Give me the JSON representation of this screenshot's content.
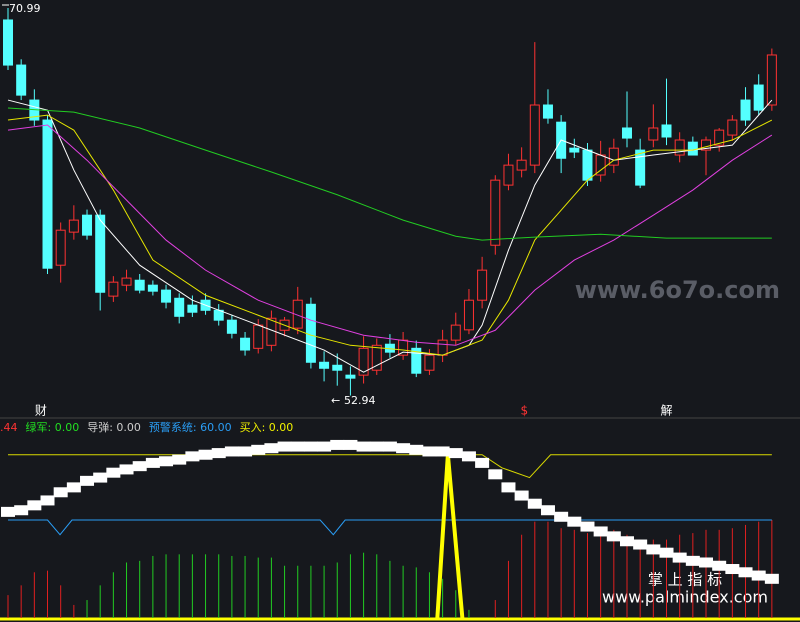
{
  "chart_data": [
    {
      "type": "candlestick",
      "ylim": [
        52.5,
        71.36
      ],
      "annotations": [
        "70.99",
        "52.94"
      ],
      "markers": [
        {
          "text": "财",
          "color": "#ffffff",
          "index": 2.5
        },
        {
          "text": "$",
          "color": "#ff3333",
          "index": 39.2
        },
        {
          "text": "解",
          "color": "#ffffff",
          "index": 50
        }
      ],
      "watermark": "www.6o7o.com",
      "up_color": "#ff3232",
      "down_color": "#54ffff",
      "open": [
        70.43,
        68.33,
        66.7,
        65.77,
        59.01,
        60.55,
        61.34,
        61.34,
        57.57,
        58.08,
        58.31,
        58.08,
        57.85,
        57.47,
        57.15,
        57.38,
        56.91,
        56.45,
        55.61,
        55.14,
        55.28,
        55.98,
        56.08,
        57.19,
        54.49,
        54.35,
        53.89,
        53.89,
        54.12,
        55.33,
        54.82,
        55.14,
        54.12,
        54.82,
        55.52,
        56.0,
        57.38,
        59.94,
        62.74,
        63.44,
        63.67,
        66.47,
        65.67,
        64.46,
        64.37,
        63.21,
        63.67,
        65.4,
        64.37,
        64.84,
        65.54,
        64.14,
        64.74,
        64.37,
        64.6,
        65.07,
        66.7,
        67.4,
        66.47
      ],
      "high": [
        70.99,
        68.6,
        67.2,
        66.0,
        61.0,
        61.8,
        61.6,
        61.6,
        58.5,
        58.8,
        58.6,
        58.3,
        58.1,
        57.7,
        57.6,
        57.7,
        57.2,
        56.7,
        55.9,
        56.5,
        56.9,
        56.6,
        58.0,
        57.5,
        55.0,
        54.9,
        54.3,
        55.7,
        55.6,
        55.8,
        55.9,
        55.5,
        55.1,
        56.0,
        56.8,
        57.9,
        59.4,
        63.2,
        64.2,
        64.5,
        69.4,
        67.2,
        66.0,
        64.9,
        64.7,
        64.8,
        64.9,
        67.1,
        64.9,
        66.5,
        67.7,
        65.2,
        65.0,
        65.0,
        65.4,
        66.0,
        67.3,
        67.9,
        69.1
      ],
      "low": [
        68.1,
        66.7,
        65.5,
        58.6,
        58.2,
        60.2,
        60.2,
        56.9,
        57.3,
        57.8,
        57.7,
        57.6,
        57.0,
        56.3,
        56.6,
        56.7,
        56.2,
        55.6,
        54.8,
        54.9,
        55.0,
        55.7,
        55.8,
        54.2,
        53.6,
        53.4,
        52.94,
        53.5,
        53.9,
        54.7,
        54.6,
        53.8,
        53.9,
        54.5,
        55.3,
        55.8,
        57.0,
        59.5,
        62.5,
        63.1,
        63.3,
        65.6,
        63.3,
        64.0,
        62.7,
        62.9,
        63.3,
        64.5,
        62.6,
        64.5,
        64.6,
        63.8,
        64.2,
        63.2,
        64.3,
        64.8,
        65.5,
        66.0,
        66.2
      ],
      "close": [
        68.33,
        66.93,
        65.77,
        58.87,
        60.64,
        61.11,
        60.41,
        57.75,
        58.22,
        58.41,
        57.85,
        57.8,
        57.29,
        56.63,
        56.82,
        56.91,
        56.45,
        55.84,
        55.06,
        56.22,
        56.54,
        56.45,
        57.38,
        54.49,
        54.21,
        54.12,
        53.75,
        55.14,
        55.28,
        54.96,
        55.52,
        53.98,
        54.82,
        55.52,
        56.22,
        57.38,
        58.78,
        62.97,
        63.67,
        63.9,
        66.47,
        65.86,
        63.99,
        64.28,
        62.97,
        64.14,
        64.46,
        64.93,
        62.74,
        65.4,
        64.98,
        64.84,
        64.14,
        64.84,
        65.3,
        65.77,
        65.77,
        66.23,
        68.8
      ],
      "lines": [
        {
          "color": "#ffffff",
          "x": [
            0,
            3,
            5,
            7,
            10,
            14,
            19,
            24,
            27,
            30,
            33,
            35,
            36,
            38,
            40,
            42,
            44,
            46,
            49,
            52,
            55,
            58
          ],
          "values": [
            66.7,
            66.23,
            63.44,
            61.11,
            59.01,
            57.38,
            56.22,
            55.06,
            54.03,
            54.96,
            54.82,
            55.28,
            56.22,
            59.71,
            62.74,
            64.84,
            64.37,
            63.9,
            64.14,
            64.37,
            64.6,
            66.7
          ]
        },
        {
          "color": "#e6e600",
          "x": [
            0,
            3,
            5,
            8,
            11,
            15,
            19,
            23,
            26,
            30,
            33,
            36,
            38,
            40,
            42,
            44,
            46,
            49,
            52,
            55,
            58
          ],
          "values": [
            65.77,
            66.0,
            65.3,
            62.51,
            59.25,
            57.61,
            56.68,
            55.75,
            55.28,
            55.06,
            54.82,
            55.52,
            57.38,
            60.18,
            61.57,
            62.97,
            63.9,
            64.37,
            64.37,
            64.84,
            65.77
          ]
        },
        {
          "color": "#e040e0",
          "x": [
            0,
            3,
            6,
            9,
            12,
            15,
            19,
            23,
            27,
            31,
            34,
            37,
            40,
            43,
            46,
            49,
            52,
            55,
            58
          ],
          "values": [
            65.3,
            65.54,
            63.9,
            62.04,
            60.18,
            58.78,
            57.38,
            56.45,
            55.75,
            55.42,
            55.28,
            55.98,
            57.85,
            59.25,
            60.18,
            61.34,
            62.51,
            63.9,
            65.07
          ]
        },
        {
          "color": "#22cc22",
          "x": [
            0,
            5,
            10,
            15,
            20,
            25,
            30,
            34,
            36,
            40,
            45,
            50,
            58
          ],
          "values": [
            66.33,
            66.14,
            65.4,
            64.37,
            63.35,
            62.29,
            61.11,
            60.36,
            60.18,
            60.32,
            60.45,
            60.27,
            60.27
          ]
        }
      ]
    },
    {
      "type": "indicator",
      "ylim": [
        0,
        110
      ],
      "legend": [
        {
          "text": ".44",
          "color": "#ff3333"
        },
        {
          "text": "绿军: 0.00",
          "color": "#22dd22"
        },
        {
          "text": "导弹: 0.00",
          "color": "#cccccc"
        },
        {
          "text": "预警系统: 60.00",
          "color": "#2a9df4"
        },
        {
          "text": "买入: 0.00",
          "color": "#f0f000"
        }
      ],
      "footer": [
        "掌 上 指 标",
        "www.palmindex.com"
      ],
      "hist_red": [
        14,
        20,
        28,
        29,
        20,
        8,
        null,
        null,
        null,
        null,
        null,
        null,
        null,
        null,
        null,
        null,
        null,
        null,
        null,
        null,
        null,
        null,
        null,
        null,
        null,
        null,
        null,
        null,
        null,
        null,
        null,
        null,
        null,
        null,
        null,
        null,
        0,
        11,
        35,
        51,
        59,
        59,
        55,
        54,
        52,
        54,
        54,
        51,
        48,
        48,
        48,
        51,
        52,
        54,
        54,
        55,
        57,
        59,
        60
      ],
      "hist_green": [
        null,
        null,
        null,
        null,
        null,
        null,
        11,
        20,
        28,
        34,
        35,
        38,
        39,
        39,
        39,
        39,
        39,
        38,
        38,
        37,
        37,
        32,
        32,
        32,
        32,
        34,
        39,
        40,
        39,
        35,
        32,
        31,
        28,
        24,
        17,
        5,
        null,
        null,
        null,
        null,
        null,
        null,
        null,
        null,
        null,
        null,
        null,
        null,
        null,
        null,
        null,
        null,
        null,
        null,
        null,
        null,
        null,
        null,
        null
      ],
      "blocks": [
        65,
        66,
        69,
        72,
        77,
        80,
        84,
        86,
        89,
        91,
        93,
        95,
        96,
        97,
        99,
        100,
        101,
        102,
        102,
        103,
        104,
        105,
        105,
        105,
        105,
        106,
        106,
        105,
        105,
        105,
        104,
        103,
        102,
        102,
        101,
        99,
        95,
        88,
        80,
        75,
        70,
        66,
        62,
        59,
        56,
        53,
        50,
        47,
        45,
        42,
        40,
        37,
        35,
        34,
        32,
        30,
        28,
        26,
        24
      ],
      "lines": [
        {
          "color": "#d8d800",
          "width": 1,
          "x": [
            0,
            36,
            37.5,
            39.6,
            41.2,
            58
          ],
          "values": [
            100,
            100,
            92,
            86,
            100,
            100
          ]
        },
        {
          "color": "#2a9df4",
          "width": 1,
          "x": [
            0,
            3.0,
            3.95,
            4.86,
            23.7,
            24.7,
            25.6,
            58
          ],
          "values": [
            60,
            60,
            51,
            60,
            60,
            51,
            60,
            60
          ]
        },
        {
          "color": "#ffff00",
          "width": 4,
          "x": [
            32.6,
            33.4,
            34.5
          ],
          "values": [
            0,
            100,
            0
          ]
        }
      ]
    }
  ]
}
